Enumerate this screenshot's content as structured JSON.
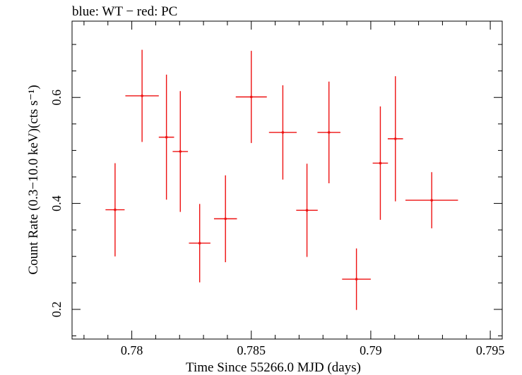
{
  "chart_data": {
    "type": "scatter",
    "title": "blue: WT − red: PC",
    "xlabel": "Time Since 55266.0 MJD (days)",
    "ylabel": "Count Rate (0.3−10.0 keV)(cts s⁻¹)",
    "xlim": [
      0.7775,
      0.7955
    ],
    "ylim": [
      0.144,
      0.744
    ],
    "xticks": [
      {
        "value": 0.78,
        "label": "0.78"
      },
      {
        "value": 0.785,
        "label": "0.785"
      },
      {
        "value": 0.79,
        "label": "0.79"
      },
      {
        "value": 0.795,
        "label": "0.795"
      }
    ],
    "yticks": [
      {
        "value": 0.2,
        "label": "0.2"
      },
      {
        "value": 0.4,
        "label": "0.4"
      },
      {
        "value": 0.6,
        "label": "0.6"
      }
    ],
    "grid": false,
    "series": [
      {
        "name": "PC",
        "color": "#ee1111",
        "points": [
          {
            "x": 0.7793,
            "xerr": 0.0004,
            "y": 0.388,
            "yerr": 0.088
          },
          {
            "x": 0.78043,
            "xerr": 0.0007,
            "y": 0.603,
            "yerr": 0.087
          },
          {
            "x": 0.78145,
            "xerr": 0.00032,
            "y": 0.525,
            "yerr": 0.118
          },
          {
            "x": 0.78203,
            "xerr": 0.00032,
            "y": 0.498,
            "yerr": 0.114
          },
          {
            "x": 0.78284,
            "xerr": 0.00045,
            "y": 0.325,
            "yerr": 0.074
          },
          {
            "x": 0.78392,
            "xerr": 0.00048,
            "y": 0.371,
            "yerr": 0.082
          },
          {
            "x": 0.785,
            "xerr": 0.00065,
            "y": 0.601,
            "yerr": 0.087
          },
          {
            "x": 0.78632,
            "xerr": 0.00058,
            "y": 0.534,
            "yerr": 0.089
          },
          {
            "x": 0.78733,
            "xerr": 0.00045,
            "y": 0.387,
            "yerr": 0.088
          },
          {
            "x": 0.78825,
            "xerr": 0.00048,
            "y": 0.534,
            "yerr": 0.096
          },
          {
            "x": 0.7894,
            "xerr": 0.0006,
            "y": 0.257,
            "yerr": 0.058
          },
          {
            "x": 0.7904,
            "xerr": 0.00032,
            "y": 0.476,
            "yerr": 0.107
          },
          {
            "x": 0.79103,
            "xerr": 0.00032,
            "y": 0.522,
            "yerr": 0.118
          },
          {
            "x": 0.79255,
            "xerr": 0.0011,
            "y": 0.406,
            "yerr": 0.053
          }
        ]
      }
    ]
  }
}
